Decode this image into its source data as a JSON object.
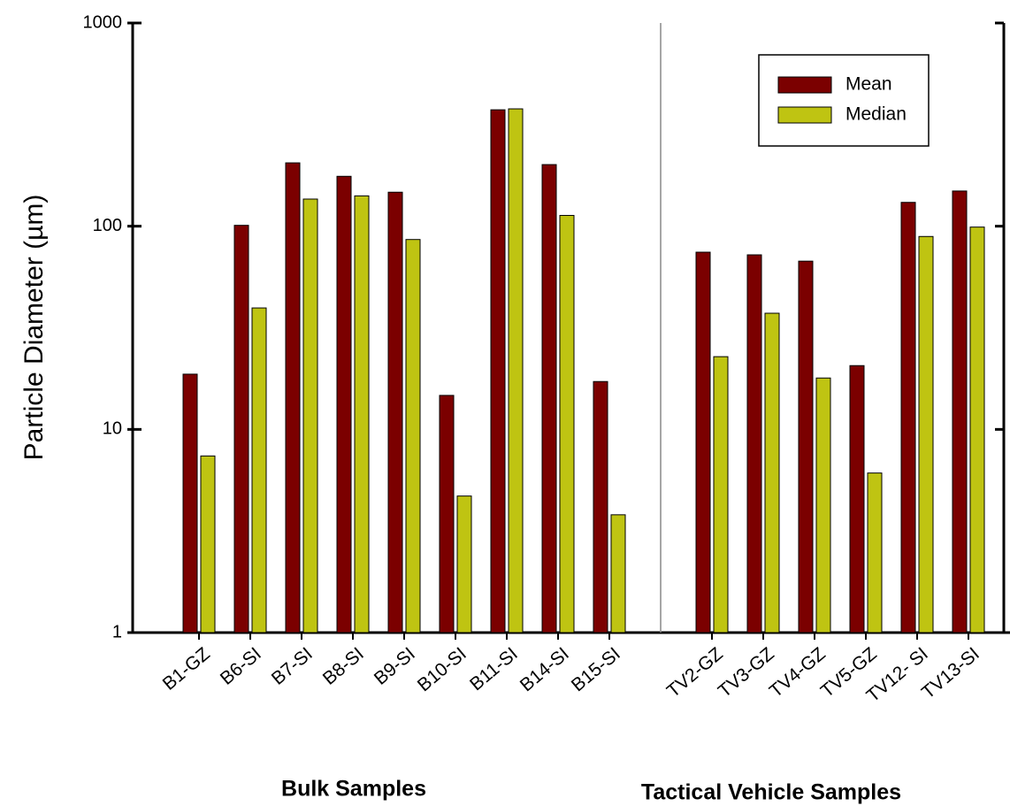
{
  "chart_data": {
    "type": "bar",
    "y_label": "Particle Diameter (µm)",
    "annotations": [
      "Bulk Samples",
      "Tactical Vehicle Samples"
    ],
    "categories": [
      "B1-GZ",
      "B6-SI",
      "B7-SI",
      "B8-SI",
      "B9-SI",
      "B10-SI",
      "B11-SI",
      "B14-SI",
      "B15-SI",
      null,
      "TV2-GZ",
      "TV3-GZ",
      "TV4-GZ",
      "TV5-GZ",
      "TV12- SI",
      "TV13-SI"
    ],
    "series": [
      {
        "name": "Mean",
        "color": "#7b0000",
        "values": [
          18.7,
          101,
          205,
          176,
          147,
          14.7,
          374,
          201,
          17.2,
          null,
          74.5,
          72.3,
          67.3,
          20.6,
          131,
          149
        ]
      },
      {
        "name": "Median",
        "color": "#bfc412",
        "values": [
          7.4,
          39.6,
          136,
          141,
          86,
          4.7,
          378,
          113,
          3.8,
          null,
          22.8,
          37.3,
          17.9,
          6.1,
          89,
          99
        ]
      }
    ],
    "ylim": [
      1,
      1000
    ],
    "yticks": [
      1,
      10,
      100,
      1000
    ],
    "log_y": true,
    "legend": "upper right"
  }
}
